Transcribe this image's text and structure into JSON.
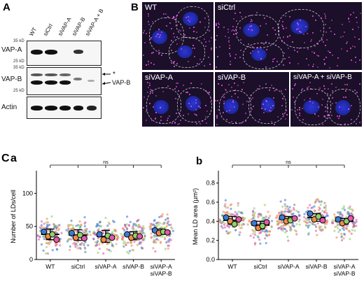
{
  "panelA": {
    "letter": "A",
    "lanes": [
      "WT",
      "siCtrl",
      "siVAP-A",
      "siVAP-B",
      "siVAP-A + B"
    ],
    "blots": [
      {
        "label": "VAP-A",
        "mw_top": "35 kD",
        "mw_bottom": "25 kD"
      },
      {
        "label": "VAP-B",
        "mw_top": "35 kD",
        "mw_bottom": "25 kD"
      },
      {
        "label": "Actin",
        "mw_top": "",
        "mw_bottom": ""
      }
    ],
    "arrow_star": "*",
    "arrow_vapb": "VAP-B"
  },
  "panelB": {
    "letter": "B",
    "panels": [
      "WT",
      "siCtrl",
      "siVAP-A",
      "siVAP-B",
      "siVAP-A + siVAP-B"
    ]
  },
  "panelC": {
    "letter": "C",
    "sub_a": "a",
    "sub_b": "b"
  },
  "chart_data": [
    {
      "type": "scatter",
      "title": "",
      "ylabel": "Number of LDs/cell",
      "ylim": [
        0,
        130
      ],
      "yticks": [
        "0",
        "50",
        "100"
      ],
      "categories": [
        "WT",
        "siCtrl",
        "siVAP-A",
        "siVAP-B",
        "siVAP-A\nsiVAP-B"
      ],
      "means": [
        38,
        37,
        35,
        36,
        42
      ],
      "error": [
        8,
        8,
        9,
        6,
        4
      ],
      "significance": "ns",
      "replicates": [
        [
          42,
          35,
          38,
          30
        ],
        [
          40,
          33,
          37,
          32
        ],
        [
          38,
          30,
          36,
          33
        ],
        [
          38,
          33,
          36,
          35
        ],
        [
          44,
          40,
          42,
          41
        ]
      ]
    },
    {
      "type": "scatter",
      "title": "",
      "ylabel": "Mean LD area (µm²)",
      "ylim": [
        0,
        0.9
      ],
      "yticks": [
        "0.0",
        "0.2",
        "0.4",
        "0.6",
        "0.8"
      ],
      "categories": [
        "WT",
        "siCtrl",
        "siVAP-A",
        "siVAP-B",
        "siVAP-A\nsiVAP-B"
      ],
      "means": [
        0.41,
        0.36,
        0.42,
        0.44,
        0.4
      ],
      "error": [
        0.04,
        0.04,
        0.03,
        0.04,
        0.03
      ],
      "significance": "ns",
      "replicates": [
        [
          0.44,
          0.4,
          0.37,
          0.42
        ],
        [
          0.38,
          0.33,
          0.35,
          0.39
        ],
        [
          0.44,
          0.4,
          0.41,
          0.43
        ],
        [
          0.48,
          0.42,
          0.45,
          0.41
        ],
        [
          0.42,
          0.38,
          0.4,
          0.43
        ]
      ]
    }
  ],
  "colors": {
    "replicate": [
      "#3a7bd5",
      "#f08a4b",
      "#8fd16a",
      "#e05aa8"
    ],
    "micro_bg": "#1b0f2a",
    "nucleus": "#2f35d8",
    "lipid": "#ff5cf0"
  }
}
